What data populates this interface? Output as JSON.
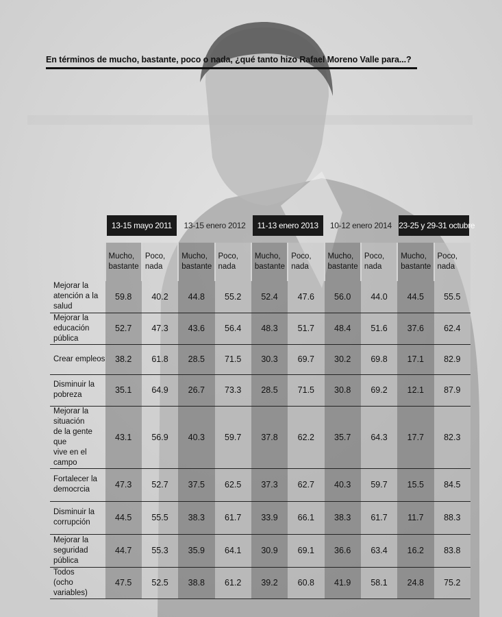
{
  "title": "En términos de mucho, bastante, poco o nada, ¿qué tanto hizo Rafael Moreno Valle para...?",
  "chart_data": {
    "type": "table",
    "periods": [
      {
        "label": "13-15 mayo 2011",
        "style": "dark"
      },
      {
        "label": "13-15 enero 2012",
        "style": "light"
      },
      {
        "label": "11-13 enero 2013",
        "style": "dark"
      },
      {
        "label": "10-12 enero 2014",
        "style": "light"
      },
      {
        "label": "23-25 y 29-31 octubre",
        "style": "dark"
      }
    ],
    "subheaders": [
      [
        "Mucho,",
        "bastante"
      ],
      [
        "Poco,",
        "nada"
      ]
    ],
    "rows": [
      {
        "label": [
          "Mejorar la",
          "atención a la salud"
        ],
        "values": [
          "59.8",
          "40.2",
          "44.8",
          "55.2",
          "52.4",
          "47.6",
          "56.0",
          "44.0",
          "44.5",
          "55.5"
        ]
      },
      {
        "label": [
          "Mejorar la",
          "educación pública"
        ],
        "values": [
          "52.7",
          "47.3",
          "43.6",
          "56.4",
          "48.3",
          "51.7",
          "48.4",
          "51.6",
          "37.6",
          "62.4"
        ]
      },
      {
        "label": [
          "Crear empleos"
        ],
        "values": [
          "38.2",
          "61.8",
          "28.5",
          "71.5",
          "30.3",
          "69.7",
          "30.2",
          "69.8",
          "17.1",
          "82.9"
        ]
      },
      {
        "label": [
          "Disminuir la",
          "pobreza"
        ],
        "values": [
          "35.1",
          "64.9",
          "26.7",
          "73.3",
          "28.5",
          "71.5",
          "30.8",
          "69.2",
          "12.1",
          "87.9"
        ]
      },
      {
        "label": [
          "Mejorar la",
          "situación",
          "de la gente que",
          "vive en el campo"
        ],
        "values": [
          "43.1",
          "56.9",
          "40.3",
          "59.7",
          "37.8",
          "62.2",
          "35.7",
          "64.3",
          "17.7",
          "82.3"
        ]
      },
      {
        "label": [
          "Fortalecer la",
          "democrcia"
        ],
        "values": [
          "47.3",
          "52.7",
          "37.5",
          "62.5",
          "37.3",
          "62.7",
          "40.3",
          "59.7",
          "15.5",
          "84.5"
        ]
      },
      {
        "label": [
          "Disminuir la",
          "corrupción"
        ],
        "values": [
          "44.5",
          "55.5",
          "38.3",
          "61.7",
          "33.9",
          "66.1",
          "38.3",
          "61.7",
          "11.7",
          "88.3"
        ]
      },
      {
        "label": [
          "Mejorar la",
          "seguridad pública"
        ],
        "values": [
          "44.7",
          "55.3",
          "35.9",
          "64.1",
          "30.9",
          "69.1",
          "36.6",
          "63.4",
          "16.2",
          "83.8"
        ]
      },
      {
        "label": [
          "Todos",
          "(ocho variables)"
        ],
        "values": [
          "47.5",
          "52.5",
          "38.8",
          "61.2",
          "39.2",
          "60.8",
          "41.9",
          "58.1",
          "24.8",
          "75.2"
        ]
      }
    ]
  }
}
